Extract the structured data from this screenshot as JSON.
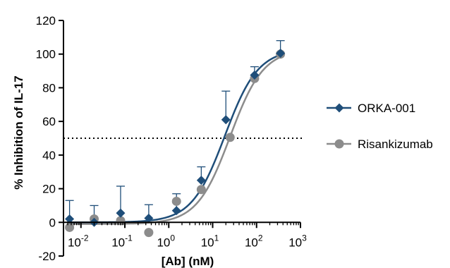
{
  "chart_data": {
    "type": "scatter",
    "xlabel": "[Ab] (nM)",
    "ylabel": "% Inhibition of IL-17",
    "xscale": "log10",
    "xlim": [
      0.004,
      1000
    ],
    "ylim": [
      -20,
      120
    ],
    "y_ticks": [
      -20,
      0,
      20,
      40,
      60,
      80,
      100,
      120
    ],
    "x_ticks": [
      {
        "value": 0.01,
        "base": "10",
        "exp": "-2"
      },
      {
        "value": 0.1,
        "base": "10",
        "exp": "-1"
      },
      {
        "value": 1,
        "base": "10",
        "exp": "0"
      },
      {
        "value": 10,
        "base": "10",
        "exp": "1"
      },
      {
        "value": 100,
        "base": "10",
        "exp": "2"
      },
      {
        "value": 1000,
        "base": "10",
        "exp": "3"
      }
    ],
    "reference_line": {
      "y": 50,
      "style": "dotted"
    },
    "legend_position": "right",
    "series": [
      {
        "name": "ORKA-001",
        "color": "#1f4e79",
        "marker": "diamond",
        "points": [
          {
            "x": 0.0055,
            "y": 2,
            "err": 11
          },
          {
            "x": 0.02,
            "y": 0,
            "err": 10
          },
          {
            "x": 0.08,
            "y": 5.5,
            "err": 16
          },
          {
            "x": 0.35,
            "y": 2.5,
            "err": 8
          },
          {
            "x": 1.5,
            "y": 7,
            "err": 10
          },
          {
            "x": 5.5,
            "y": 25,
            "err": 8
          },
          {
            "x": 20,
            "y": 61,
            "err": 17
          },
          {
            "x": 90,
            "y": 87.5,
            "err": 5
          },
          {
            "x": 350,
            "y": 100.5,
            "err": 7.5
          }
        ],
        "fit": {
          "bottom": 0,
          "top": 103,
          "ec50": 19,
          "hill": 1.15
        }
      },
      {
        "name": "Risankizumab",
        "color": "#8c8c8c",
        "marker": "circle",
        "points": [
          {
            "x": 0.0055,
            "y": -3
          },
          {
            "x": 0.02,
            "y": 2
          },
          {
            "x": 0.08,
            "y": 1
          },
          {
            "x": 0.35,
            "y": -6
          },
          {
            "x": 1.5,
            "y": 12.5
          },
          {
            "x": 5.5,
            "y": 19.5
          },
          {
            "x": 25,
            "y": 50.5
          },
          {
            "x": 90,
            "y": 85.5
          },
          {
            "x": 350,
            "y": 100
          }
        ],
        "fit": {
          "bottom": -1,
          "top": 103,
          "ec50": 25,
          "hill": 1.15
        }
      }
    ]
  }
}
